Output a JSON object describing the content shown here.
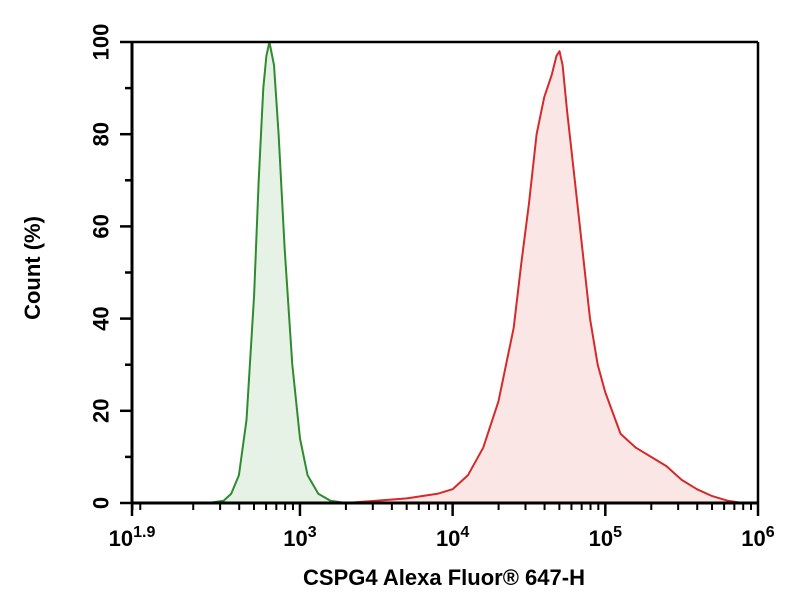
{
  "chart_data": {
    "type": "area",
    "xlabel": "CSPG4 Alexa Fluor® 647-H",
    "ylabel": "Count (%)",
    "x_scale": "log10",
    "xlim": [
      1.9,
      6
    ],
    "ylim": [
      0,
      100
    ],
    "x_ticks": [
      {
        "value": 1.9,
        "base": "10",
        "exp": "1.9"
      },
      {
        "value": 3,
        "base": "10",
        "exp": "3"
      },
      {
        "value": 4,
        "base": "10",
        "exp": "4"
      },
      {
        "value": 5,
        "base": "10",
        "exp": "5"
      },
      {
        "value": 6,
        "base": "10",
        "exp": "6"
      }
    ],
    "y_ticks": [
      0,
      20,
      40,
      60,
      80,
      100
    ],
    "grid": false,
    "legend": "none",
    "series": [
      {
        "color": "#2e8b2e",
        "fill": "#e6f2e6",
        "points": [
          [
            2.4,
            0
          ],
          [
            2.5,
            0.5
          ],
          [
            2.55,
            2
          ],
          [
            2.6,
            6
          ],
          [
            2.65,
            18
          ],
          [
            2.7,
            45
          ],
          [
            2.73,
            70
          ],
          [
            2.76,
            90
          ],
          [
            2.78,
            97
          ],
          [
            2.8,
            100
          ],
          [
            2.83,
            95
          ],
          [
            2.86,
            80
          ],
          [
            2.9,
            55
          ],
          [
            2.95,
            30
          ],
          [
            3.0,
            14
          ],
          [
            3.05,
            6
          ],
          [
            3.12,
            2
          ],
          [
            3.2,
            0.5
          ],
          [
            3.3,
            0
          ]
        ]
      },
      {
        "color": "#d42a2a",
        "fill": "#fbe6e6",
        "points": [
          [
            3.3,
            0
          ],
          [
            3.5,
            0.5
          ],
          [
            3.7,
            1
          ],
          [
            3.9,
            2
          ],
          [
            4.0,
            3
          ],
          [
            4.1,
            6
          ],
          [
            4.2,
            12
          ],
          [
            4.3,
            22
          ],
          [
            4.4,
            38
          ],
          [
            4.45,
            52
          ],
          [
            4.5,
            65
          ],
          [
            4.55,
            80
          ],
          [
            4.6,
            88
          ],
          [
            4.65,
            93
          ],
          [
            4.68,
            97
          ],
          [
            4.7,
            98
          ],
          [
            4.72,
            95
          ],
          [
            4.75,
            85
          ],
          [
            4.8,
            70
          ],
          [
            4.85,
            55
          ],
          [
            4.9,
            40
          ],
          [
            4.95,
            30
          ],
          [
            5.0,
            24
          ],
          [
            5.1,
            15
          ],
          [
            5.2,
            12
          ],
          [
            5.3,
            10
          ],
          [
            5.4,
            8
          ],
          [
            5.5,
            5
          ],
          [
            5.6,
            3
          ],
          [
            5.7,
            1.5
          ],
          [
            5.8,
            0.5
          ],
          [
            5.9,
            0
          ]
        ]
      }
    ]
  }
}
